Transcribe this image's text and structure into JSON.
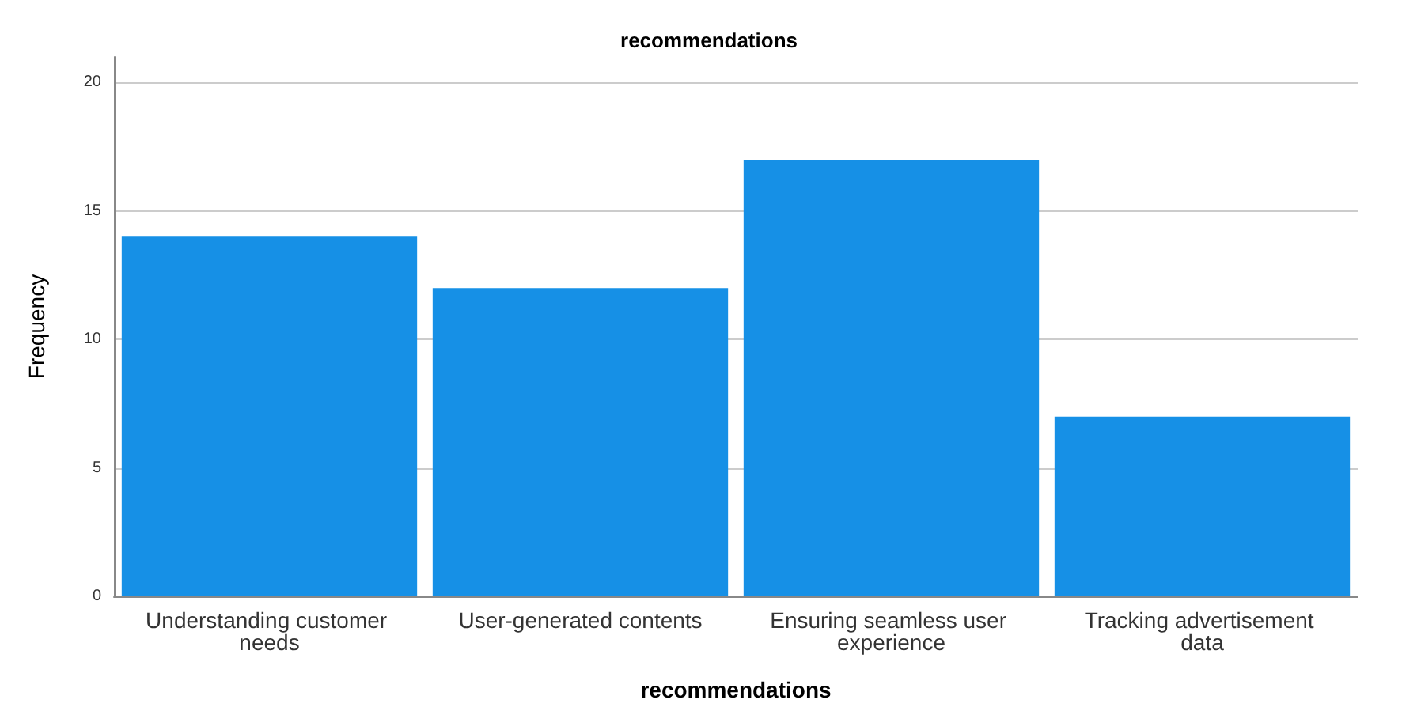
{
  "chart_data": {
    "type": "bar",
    "title": "recommendations",
    "xlabel": "recommendations",
    "ylabel": "Frequency",
    "categories": [
      "Understanding customer needs",
      "User-generated contents",
      "Ensuring seamless user experience",
      "Tracking advertisement data"
    ],
    "values": [
      14,
      12,
      17,
      7
    ],
    "color": "#1690e6",
    "ylim": [
      0,
      21
    ],
    "yticks": [
      0,
      5,
      10,
      15,
      20
    ],
    "grid": "y"
  }
}
